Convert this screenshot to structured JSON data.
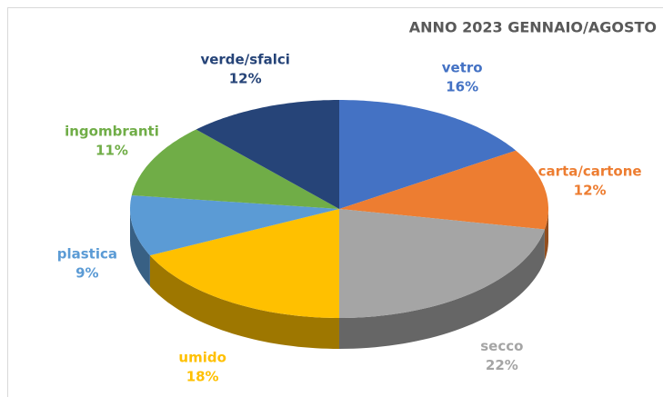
{
  "chart_data": {
    "type": "pie",
    "title": "ANNO 2023 GENNAIO/AGOSTO",
    "categories": [
      "vetro",
      "carta/cartone",
      "secco",
      "umido",
      "plastica",
      "ingombranti",
      "verde/sfalci"
    ],
    "values": [
      16,
      12,
      22,
      18,
      9,
      11,
      12
    ],
    "value_labels": [
      "16%",
      "12%",
      "22%",
      "18%",
      "9%",
      "11%",
      "12%"
    ],
    "colors": [
      "#4472c4",
      "#ed7d31",
      "#a5a5a5",
      "#ffc000",
      "#5b9bd5",
      "#70ad47",
      "#264478"
    ]
  }
}
